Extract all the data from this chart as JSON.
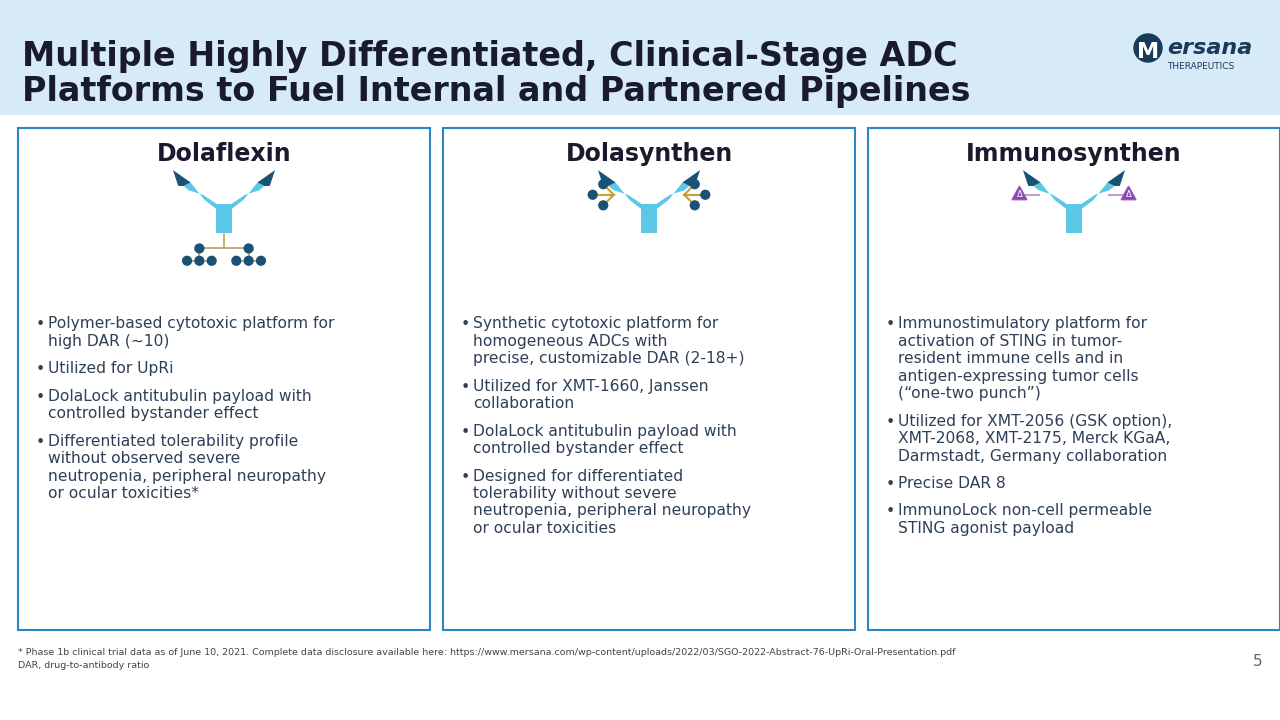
{
  "title_line1": "Multiple Highly Differentiated, Clinical-Stage ADC",
  "title_line2": "Platforms to Fuel Internal and Partnered Pipelines",
  "title_color": "#1a1a2e",
  "header_bg": "#d6eaf8",
  "background_color": "#ffffff",
  "panel_border_color": "#2e86c1",
  "panel_titles": [
    "Dolaflexin",
    "Dolasynthen",
    "Immunosynthen"
  ],
  "panel_title_color": "#1a1a2e",
  "bullet_color": "#2e4057",
  "col1_bullets": [
    "Polymer-based cytotoxic platform for\nhigh DAR (~10)",
    "Utilized for UpRi",
    "DolaLock antitubulin payload with\ncontrolled bystander effect",
    "Differentiated tolerability profile\nwithout observed severe\nneutropenia, peripheral neuropathy\nor ocular toxicities*"
  ],
  "col2_bullets": [
    "Synthetic cytotoxic platform for\nhomogeneous ADCs with\nprecise, customizable DAR (2-18+)",
    "Utilized for XMT-1660, Janssen\ncollaboration",
    "DolaLock antitubulin payload with\ncontrolled bystander effect",
    "Designed for differentiated\ntolerability without severe\nneutropenia, peripheral neuropathy\nor ocular toxicities"
  ],
  "col3_bullets": [
    "Immunostimulatory platform for\nactivation of STING in tumor-\nresident immune cells and in\nantigen-expressing tumor cells\n(“one-two punch”)",
    "Utilized for XMT-2056 (GSK option),\nXMT-2068, XMT-2175, Merck KGaA,\nDarmstadt, Germany collaboration",
    "Precise DAR 8",
    "ImmunoLock non-cell permeable\nSTING agonist payload"
  ],
  "footer_line1": "* Phase 1b clinical trial data as of June 10, 2021. Complete data disclosure available here: https://www.mersana.com/wp-content/uploads/2022/03/SGO-2022-Abstract-76-UpRi-Oral-Presentation.pdf",
  "footer_line2": "DAR, drug-to-antibody ratio",
  "page_number": "5",
  "adc_blue_light": "#5bc8e8",
  "adc_blue_dark": "#1a5276",
  "adc_gold": "#d4a017",
  "adc_purple": "#7d3c98"
}
